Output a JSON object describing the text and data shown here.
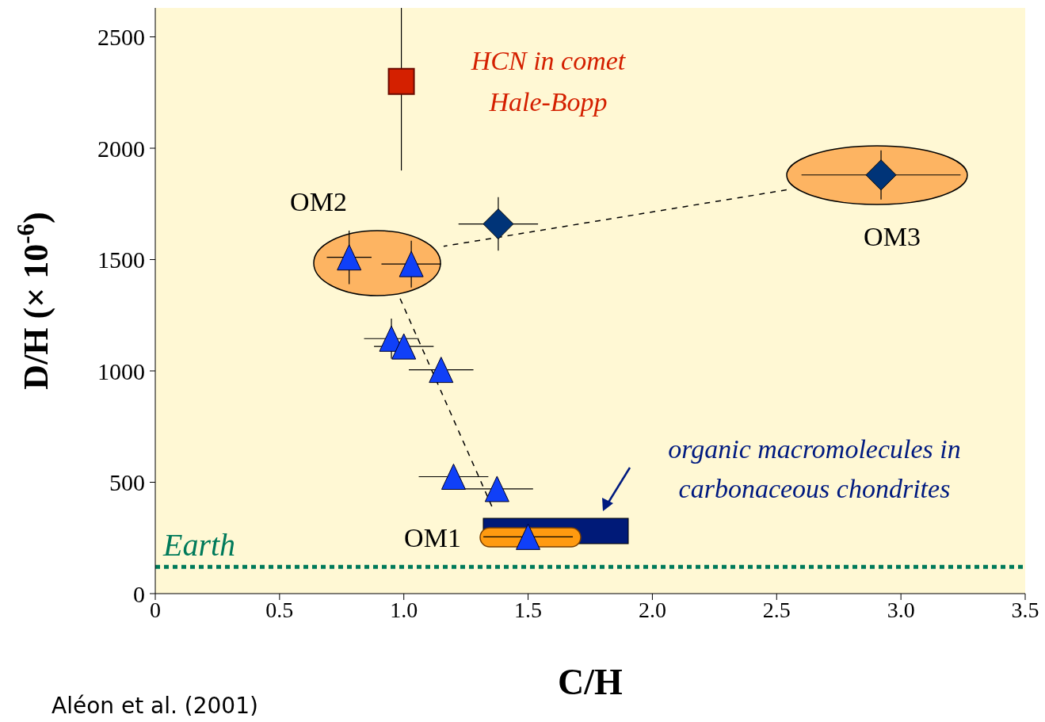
{
  "chart_data": {
    "type": "scatter",
    "xlabel": "C/H",
    "ylabel": "D/H (× 10$^{-6}$)",
    "xlim": [
      0,
      3.5
    ],
    "ylim": [
      0,
      2630
    ],
    "xticks": [
      0,
      0.5,
      {
        "value": 1,
        "label": "1.0"
      },
      1.5,
      {
        "value": 2,
        "label": "2.0"
      },
      2.5,
      {
        "value": 3,
        "label": "3.0"
      },
      3.5
    ],
    "yticks": [
      0,
      500,
      1000,
      1500,
      2000,
      2500
    ],
    "grid": false,
    "legend": false,
    "series": [
      {
        "type": "line",
        "color": "#000000",
        "line_style": "dashed",
        "marker": "none",
        "x": [
          2.54,
          1.38,
          1.16
        ],
        "values": [
          1813,
          1600,
          1560
        ]
      },
      {
        "type": "line",
        "color": "#000000",
        "line_style": "dashed",
        "marker": "none",
        "x": [
          0.985,
          1.354
        ],
        "values": [
          1325,
          392
        ]
      },
      {
        "color": "#d42000",
        "marker": "square",
        "x": [
          0.99
        ],
        "values": [
          2300
        ],
        "errors": [
          [
            1900,
            2630
          ]
        ]
      },
      {
        "color": "#003478",
        "marker": "diamond",
        "x": [
          2.92,
          1.38
        ],
        "values": [
          1880,
          1660
        ],
        "errors": [
          110,
          120
        ],
        "xerrors": [
          0.32,
          0.16
        ]
      },
      {
        "color": "#1040f8",
        "marker": "triangle",
        "x": [
          0.78,
          1.03,
          0.95,
          1.0,
          1.15,
          1.2,
          1.375,
          1.5
        ],
        "values": [
          1510,
          1480,
          1145,
          1110,
          1005,
          525,
          470,
          255
        ],
        "errors": [
          120,
          105,
          90,
          null,
          null,
          null,
          null,
          null
        ],
        "xerrors": [
          0.09,
          0.12,
          0.11,
          0.12,
          0.13,
          0.14,
          0.145,
          0.18
        ]
      }
    ],
    "ref_lines": [
      {
        "axis": "y",
        "value": 120,
        "label": "Earth",
        "color": "#007a5a",
        "line_style": "dotted"
      }
    ],
    "annotations": [
      "HCN in comet\nHale-Bopp",
      "OM2",
      "OM3",
      "OM1",
      "organic macromolecules in\ncarbonaceous chondrites",
      "Aléon et al. (2001)"
    ]
  }
}
